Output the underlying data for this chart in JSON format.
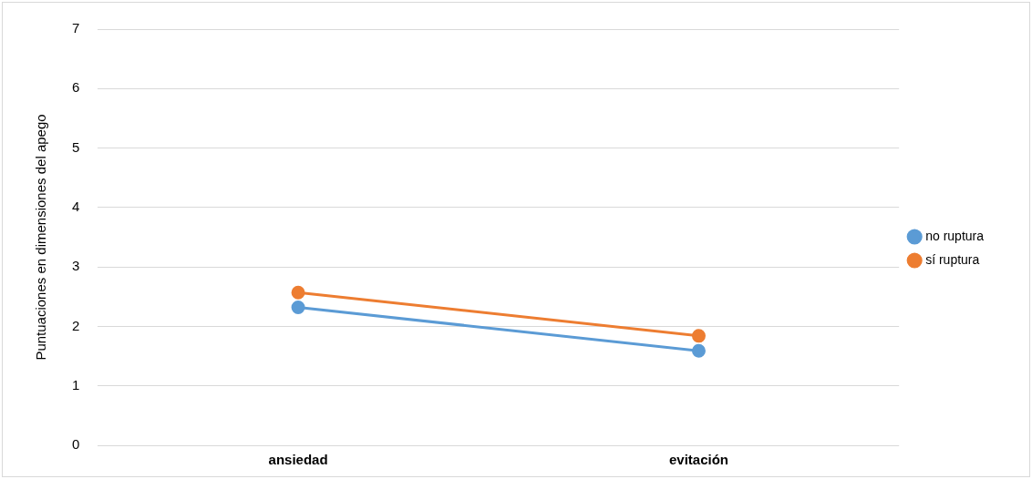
{
  "chart_data": {
    "type": "line",
    "ylabel": "Puntuaciones en dimensiones del apego",
    "categories": [
      "ansiedad",
      "evitación"
    ],
    "series": [
      {
        "name": "no ruptura",
        "color": "#5b9bd5",
        "values": [
          2.32,
          1.59
        ]
      },
      {
        "name": "sí ruptura",
        "color": "#ed7d31",
        "values": [
          2.57,
          1.84
        ]
      }
    ],
    "ylim": [
      0,
      7
    ],
    "yticks": [
      0,
      1,
      2,
      3,
      4,
      5,
      6,
      7
    ],
    "grid": "y",
    "legend": "right",
    "marker": "circle",
    "line_style": "solid"
  }
}
